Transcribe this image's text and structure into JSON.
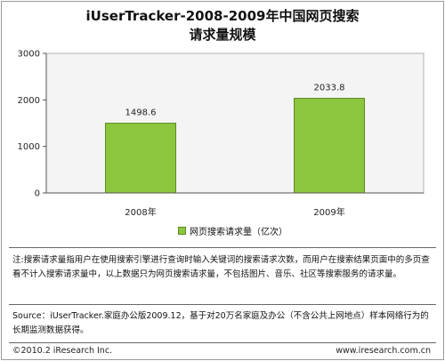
{
  "chart_data": {
    "type": "bar",
    "title": "iUserTracker-2008-2009年中国网页搜索请求量规模",
    "categories": [
      "2008年",
      "2009年"
    ],
    "series": [
      {
        "name": "网页搜索请求量（亿次）",
        "values": [
          1498.6,
          2033.8
        ]
      }
    ],
    "value_labels": [
      "1498.6",
      "2033.8"
    ],
    "yticks": [
      "0",
      "1000",
      "2000",
      "3000"
    ],
    "ylim": [
      0,
      3000
    ],
    "grid": false,
    "legend_position": "bottom",
    "bar_color": "#8cc63f",
    "bar_border_color": "#5a8a1c",
    "plot_background": "#f4f4f4"
  },
  "title_line1": "iUserTracker-2008-2009年中国网页搜索",
  "title_line2": "请求量规模",
  "note": "注:搜索请求量指用户在使用搜索引擎进行查询时输入关键词的搜索请求次数，而用户在搜索结果页面中的多页查看不计入搜索请求量中，以上数据只为网页搜索请求量，不包括图片、音乐、社区等搜索服务的请求量。",
  "source": "Source：iUserTracker.家庭办公版2009.12，基于对20万名家庭及办公（不含公共上网地点）样本网络行为的长期监测数据获得。",
  "footer_left": "©2010.2 iResearch Inc.",
  "footer_right": "www.iresearch.com.cn"
}
